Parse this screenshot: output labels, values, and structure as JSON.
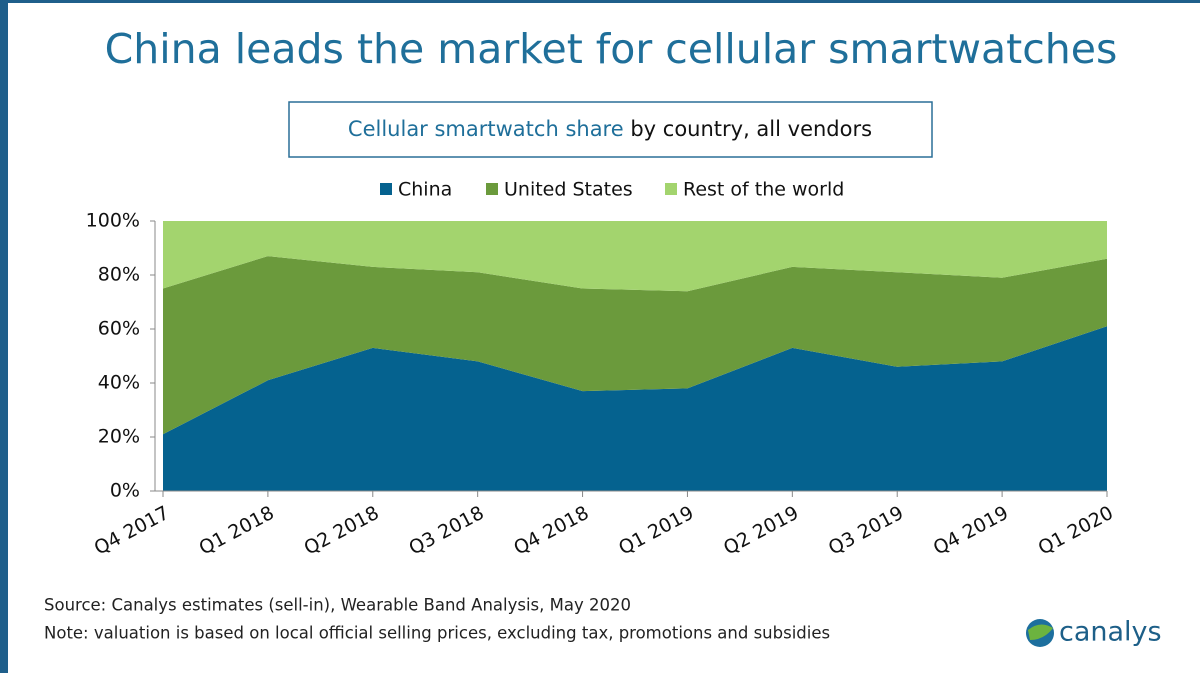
{
  "chart_data": {
    "type": "stacked_area",
    "title": "China leads the market for cellular smartwatches",
    "subtitle": [
      "Cellular smartwatch share",
      "by country, all vendors"
    ],
    "categories": [
      "Q4 2017",
      "Q1 2018",
      "Q2 2018",
      "Q3 2018",
      "Q4 2018",
      "Q1 2019",
      "Q2 2019",
      "Q3 2019",
      "Q4 2019",
      "Q1 2020"
    ],
    "series": [
      {
        "name": "China",
        "color": "#05628f",
        "values": [
          21,
          41,
          53,
          48,
          37,
          38,
          53,
          46,
          48,
          61
        ]
      },
      {
        "name": "United States",
        "color": "#6b9a3c",
        "values": [
          54,
          46,
          30,
          33,
          38,
          36,
          30,
          35,
          31,
          25
        ]
      },
      {
        "name": "Rest of the world",
        "color": "#a3d46e",
        "values": [
          25,
          13,
          17,
          19,
          25,
          26,
          17,
          19,
          21,
          14
        ]
      }
    ],
    "ylim": [
      0,
      100
    ],
    "yticks": [
      {
        "value": 0,
        "label": "0%"
      },
      {
        "value": 20,
        "label": "20%"
      },
      {
        "value": 40,
        "label": "40%"
      },
      {
        "value": 60,
        "label": "60%"
      },
      {
        "value": 80,
        "label": "80%"
      },
      {
        "value": 100,
        "label": "100%"
      }
    ],
    "legend": "top",
    "grid": false
  },
  "source": "Source: Canalys estimates (sell-in), Wearable Band Analysis, May 2020",
  "note": "Note: valuation is based on local official selling prices, excluding tax, promotions and subsidies",
  "logo": "canalys"
}
